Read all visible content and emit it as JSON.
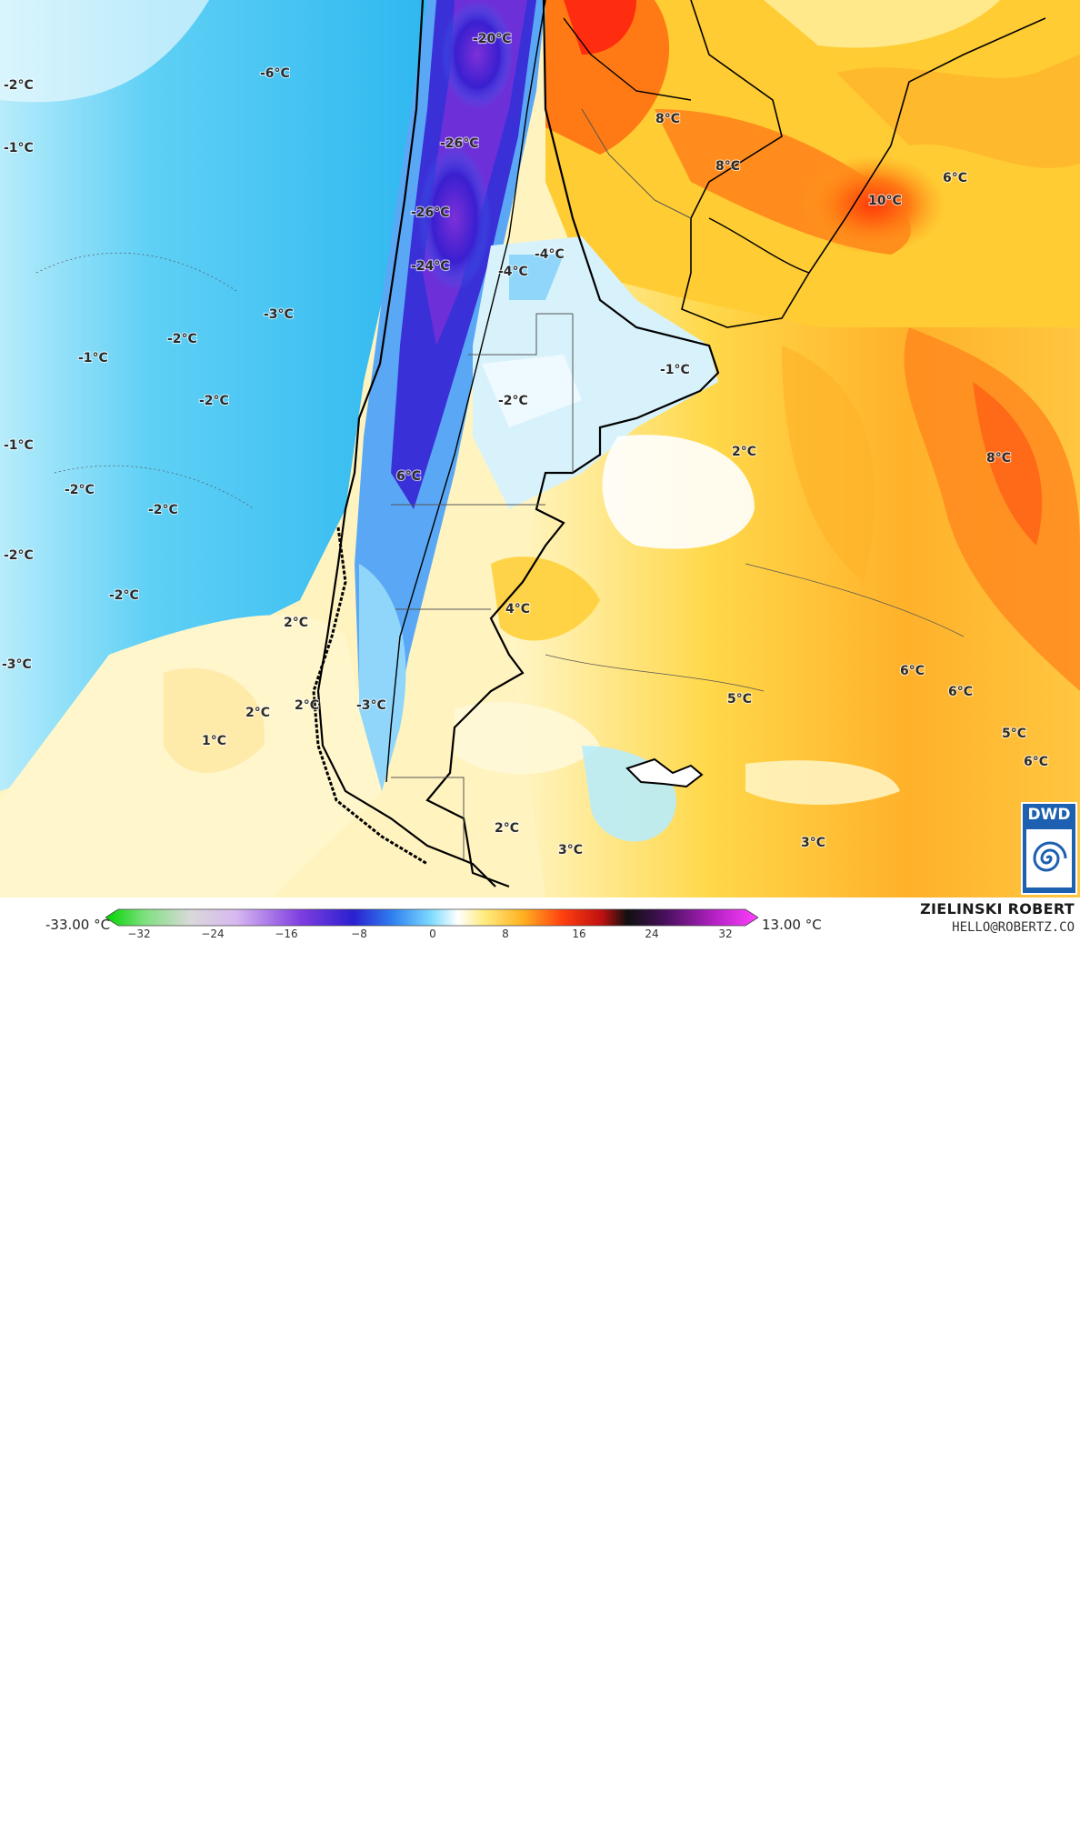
{
  "map": {
    "type": "temperature analysis map",
    "region": "Southern South America",
    "colors": {
      "ocean_cold": "#5fd0f5",
      "ocean_light": "#a8e6fa",
      "very_cold": "#3a1fd0",
      "extreme_cold": "#8a3de0",
      "neutral": "#ffffff",
      "warm_light": "#fff0b0",
      "warm": "#ffd23a",
      "hot": "#ffa21f",
      "very_hot": "#ff5a14",
      "border": "#000000",
      "province_border": "#666666"
    },
    "labels": [
      "-20°C",
      "-6°C",
      "-2°C",
      "-1°C",
      "-26°C",
      "8°C",
      "8°C",
      "6°C",
      "10°C",
      "-26°C",
      "-4°C",
      "-4°C",
      "-24°C",
      "-3°C",
      "-2°C",
      "-1°C",
      "-1°C",
      "-2°C",
      "-2°C",
      "-1°C",
      "2°C",
      "8°C",
      "6°C",
      "-2°C",
      "-2°C",
      "-2°C",
      "-2°C",
      "2°C",
      "4°C",
      "-3°C",
      "6°C",
      "6°C",
      "2°C",
      "2°C",
      "1°C",
      "5°C",
      "5°C",
      "6°C",
      "2°C",
      "3°C",
      "3°C",
      "-3°C"
    ]
  },
  "scale": {
    "min_label": "-33.00 °C",
    "max_label": "13.00 °C",
    "ticks": [
      "−32",
      "−24",
      "−16",
      "−8",
      "0",
      "8",
      "16",
      "24",
      "32"
    ]
  },
  "credit": {
    "name": "ZIELINSKI ROBERT",
    "email": "HELLO@ROBERTZ.CO"
  },
  "logo": {
    "text": "DWD"
  }
}
